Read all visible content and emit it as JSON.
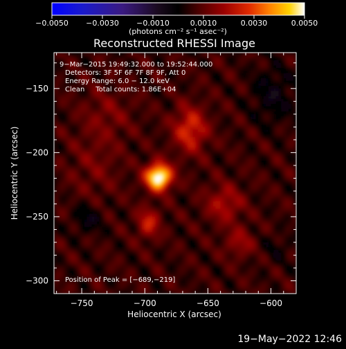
{
  "chart_data": {
    "type": "heatmap",
    "title": "Reconstructed RHESSI Image",
    "xlabel": "Heliocentric X (arcsec)",
    "ylabel": "Heliocentric Y (arcsec)",
    "xlim": [
      -772,
      -580
    ],
    "ylim": [
      -310,
      -122
    ],
    "xticks": [
      -750,
      -700,
      -650,
      -600
    ],
    "xtick_labels": [
      "−750",
      "−700",
      "−650",
      "−600"
    ],
    "yticks": [
      -150,
      -200,
      -250,
      -300
    ],
    "ytick_labels": [
      "−150",
      "−200",
      "−250",
      "−300"
    ],
    "colorbar": {
      "colormap": "hot-with-negative-blue",
      "range": [
        -0.005,
        0.005
      ],
      "ticks": [
        -0.005,
        -0.003,
        -0.001,
        0.001,
        0.003,
        0.005
      ],
      "tick_labels": [
        "−0.0050",
        "−0.0030",
        "−0.0010",
        "0.0010",
        "0.0030",
        "0.0050"
      ],
      "unit_label": "(photons cm⁻² s⁻¹ asec⁻²)"
    },
    "annotations": [
      "9−Mar−2015 19:49:32.000 to 19:52:44.000",
      "Detectors: 3F 5F 6F 7F 8F 9F, Att 0",
      "Energy Range: 6.0 − 12.0 keV",
      "Clean     Total counts: 1.86E+04"
    ],
    "peak_label": "Position of Peak = [−689,−219]",
    "peak": {
      "x": -689,
      "y": -219
    },
    "sources": [
      {
        "x": -689,
        "y": -219,
        "sx": 7,
        "sy": 7,
        "amp": 0.005
      },
      {
        "x": -664,
        "y": -182,
        "sx": 9,
        "sy": 12,
        "amp": 0.0021
      },
      {
        "x": -697,
        "y": -255,
        "sx": 6,
        "sy": 8,
        "amp": 0.0018
      },
      {
        "x": -637,
        "y": -240,
        "sx": 10,
        "sy": 10,
        "amp": 0.0014
      },
      {
        "x": -625,
        "y": -270,
        "sx": 8,
        "sy": 8,
        "amp": 0.0011
      },
      {
        "x": -730,
        "y": -170,
        "sx": 14,
        "sy": 14,
        "amp": 0.0007
      },
      {
        "x": -740,
        "y": -210,
        "sx": 14,
        "sy": 18,
        "amp": 0.0006
      },
      {
        "x": -745,
        "y": -252,
        "sx": 8,
        "sy": 8,
        "amp": -0.0009
      },
      {
        "x": -598,
        "y": -155,
        "sx": 12,
        "sy": 16,
        "amp": -0.0009
      },
      {
        "x": -595,
        "y": -275,
        "sx": 8,
        "sy": 8,
        "amp": -0.0005
      }
    ],
    "background": 0.0006
  },
  "footer": {
    "datetime": "19−May−2022 12:46"
  }
}
